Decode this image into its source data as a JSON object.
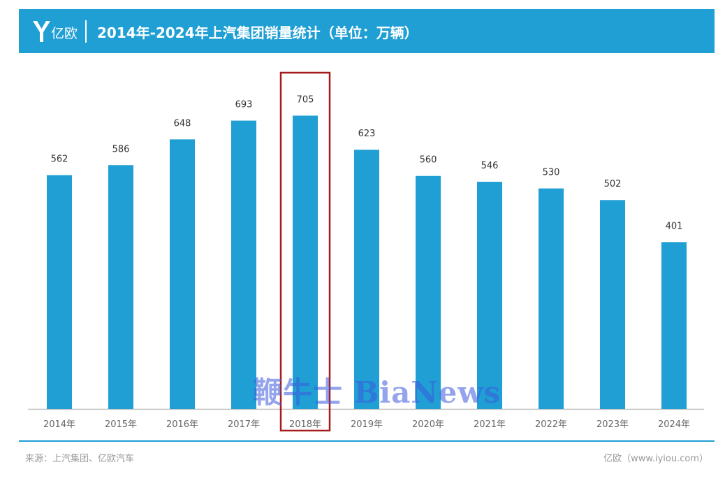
{
  "header": {
    "logo_text": "亿欧",
    "title": "2014年-2024年上汽集团销量统计（单位：万辆）"
  },
  "chart_data": {
    "type": "bar",
    "categories": [
      "2014年",
      "2015年",
      "2016年",
      "2017年",
      "2018年",
      "2019年",
      "2020年",
      "2021年",
      "2022年",
      "2023年",
      "2024年"
    ],
    "values": [
      562,
      586,
      648,
      693,
      705,
      623,
      560,
      546,
      530,
      502,
      401
    ],
    "title": "2014年-2024年上汽集团销量统计（单位：万辆）",
    "ylim": [
      0,
      820
    ],
    "grid": false,
    "highlighted_category": "2018年"
  },
  "colors": {
    "bar": "#1f9fd4",
    "banner": "#1f9fd4",
    "highlight_box": "#a61c1c"
  },
  "watermark": "鞭牛士 BiaNews",
  "footer": {
    "source": "来源：上汽集团、亿欧汽车",
    "site": "亿欧（www.iyiou.com）"
  }
}
